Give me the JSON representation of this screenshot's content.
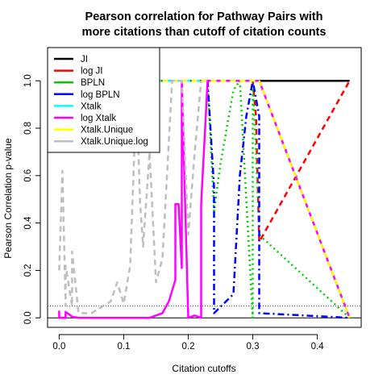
{
  "chart_data": {
    "type": "line",
    "title_lines": [
      "Pearson correlation for Pathway Pairs with",
      "more citations than cutoff of citation counts"
    ],
    "xlabel": "Citation cutoffs",
    "ylabel": "Pearson Correlation p-value",
    "xlim": [
      -0.018,
      0.468
    ],
    "ylim": [
      -0.04,
      1.14
    ],
    "xticks": [
      0.0,
      0.1,
      0.2,
      0.3,
      0.4
    ],
    "xtick_labels": [
      "0.0",
      "0.1",
      "0.2",
      "0.3",
      "0.4"
    ],
    "yticks": [
      0.0,
      0.2,
      0.4,
      0.6,
      0.8,
      1.0
    ],
    "ytick_labels": [
      "0.0",
      "0.2",
      "0.4",
      "0.6",
      "0.8",
      "1.0"
    ],
    "reference_lines": [
      {
        "y": 0.05,
        "color": "#555555",
        "dash": "dotted"
      },
      {
        "y": 0.0,
        "color": "#000000",
        "dash": "solid"
      }
    ],
    "legend_position": "top-left",
    "series": [
      {
        "name": "JI",
        "color": "#000000",
        "dash": "solid",
        "x": [
          0.0,
          0.45
        ],
        "y": [
          1.0,
          1.0
        ]
      },
      {
        "name": "log JI",
        "color": "#ff0000",
        "dash": "dashed",
        "x": [
          0.3,
          0.305,
          0.31,
          0.45
        ],
        "y": [
          1.0,
          0.85,
          0.32,
          1.0
        ]
      },
      {
        "name": "BPLN",
        "color": "#00cd00",
        "dash": "dotted",
        "x": [
          0.19,
          0.23,
          0.24,
          0.25,
          0.27,
          0.28,
          0.3,
          0.3,
          0.305,
          0.31,
          0.45
        ],
        "y": [
          1.0,
          1.0,
          0.45,
          0.65,
          0.96,
          1.0,
          0.0,
          1.0,
          0.7,
          0.35,
          0.0
        ]
      },
      {
        "name": "log BPLN",
        "color": "#0000ff",
        "dash": "dashdot",
        "x": [
          0.23,
          0.24,
          0.24,
          0.27,
          0.28,
          0.29,
          0.3,
          0.31,
          0.31,
          0.45
        ],
        "y": [
          1.0,
          0.55,
          0.02,
          0.1,
          0.6,
          0.85,
          1.0,
          0.85,
          0.02,
          0.0
        ]
      },
      {
        "name": "Xtalk",
        "color": "#00ffff",
        "dash": "dashed",
        "x": [
          0.0,
          0.31,
          0.45
        ],
        "y": [
          1.0,
          1.0,
          0.0
        ]
      },
      {
        "name": "log Xtalk",
        "color": "#ff00ff",
        "dash": "solid",
        "x": [
          0.0,
          0.0,
          0.01,
          0.01,
          0.02,
          0.03,
          0.06,
          0.1,
          0.14,
          0.16,
          0.17,
          0.18,
          0.18,
          0.185,
          0.19,
          0.19,
          0.195,
          0.2,
          0.21,
          0.22,
          0.22,
          0.23,
          0.24,
          0.31,
          0.45
        ],
        "y": [
          0.03,
          0.0,
          0.0,
          0.025,
          0.005,
          0.0,
          0.0,
          0.0,
          0.0,
          0.02,
          0.07,
          0.16,
          0.48,
          0.48,
          0.21,
          1.0,
          0.5,
          0.0,
          0.01,
          0.0,
          0.48,
          1.0,
          1.0,
          1.0,
          0.0
        ]
      },
      {
        "name": "Xtalk.Unique",
        "color": "#ffff00",
        "dash": "dashed",
        "x": [
          0.1,
          0.31,
          0.45
        ],
        "y": [
          1.0,
          1.0,
          0.0
        ]
      },
      {
        "name": "Xtalk.Unique.log",
        "color": "#bebebe",
        "dash": "dashed",
        "x": [
          0.0,
          0.005,
          0.01,
          0.01,
          0.02,
          0.02,
          0.03,
          0.05,
          0.08,
          0.09,
          0.1,
          0.11,
          0.12,
          0.125,
          0.13,
          0.14,
          0.15,
          0.16,
          0.175,
          0.19,
          0.2,
          0.21,
          0.22
        ],
        "y": [
          0.2,
          0.62,
          0.05,
          0.22,
          0.05,
          0.28,
          0.02,
          0.02,
          0.07,
          0.15,
          0.06,
          0.22,
          0.98,
          0.5,
          0.3,
          0.7,
          0.15,
          0.25,
          1.0,
          1.0,
          0.35,
          0.7,
          1.0
        ]
      }
    ]
  }
}
